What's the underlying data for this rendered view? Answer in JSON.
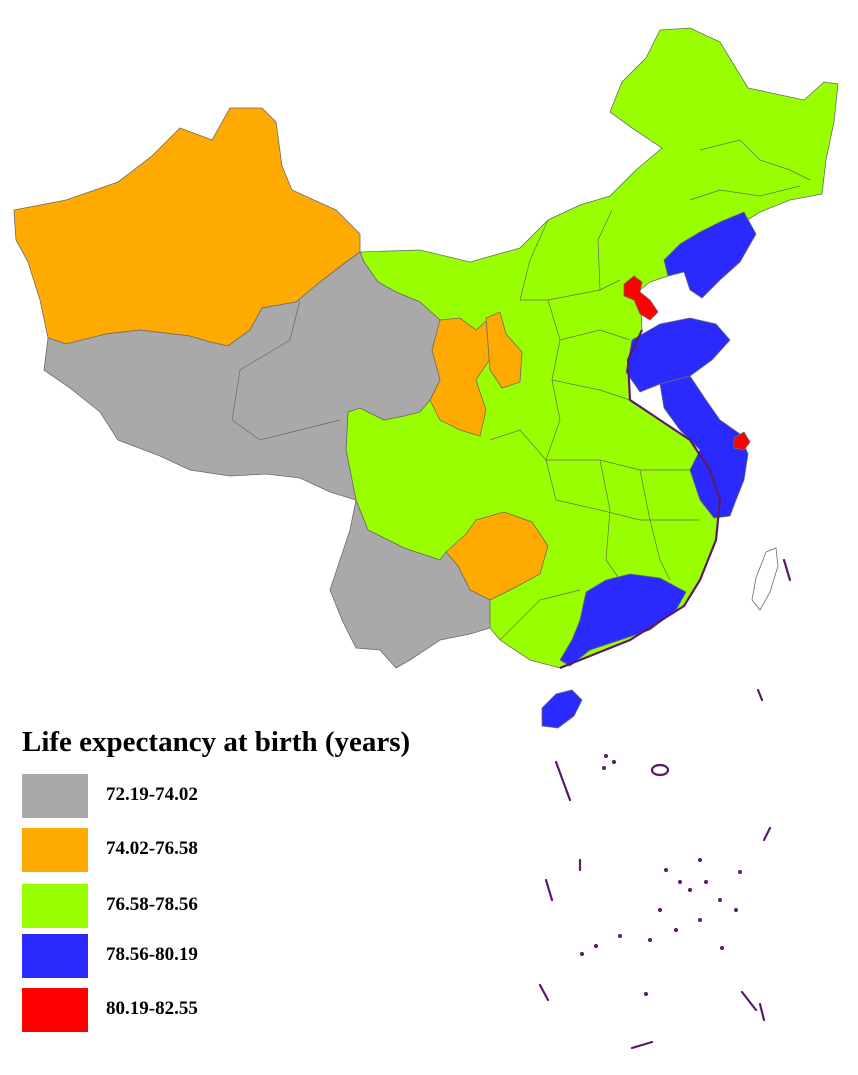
{
  "legend": {
    "title": "Life expectancy at birth (years)",
    "classes": [
      {
        "label": "72.19-74.02",
        "color": "#a9a9a9"
      },
      {
        "label": "74.02-76.58",
        "color": "#ffaa00"
      },
      {
        "label": "76.58-78.56",
        "color": "#99ff00"
      },
      {
        "label": "78.56-80.19",
        "color": "#2a2aff"
      },
      {
        "label": "80.19-82.55",
        "color": "#ff0000"
      }
    ]
  },
  "colors": {
    "outline": "#5a1a6a",
    "internal_border": "#6b6b6b",
    "background": "#ffffff"
  }
}
